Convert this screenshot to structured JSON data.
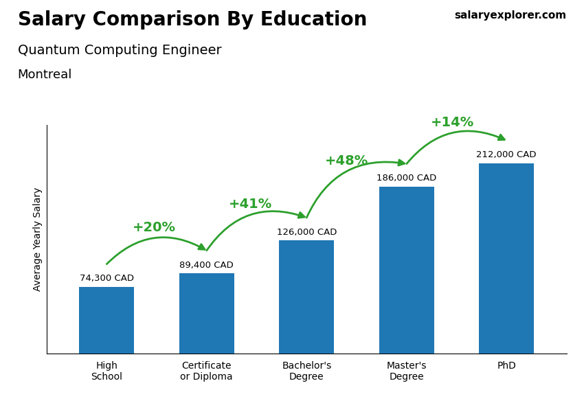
{
  "chart_data": {
    "type": "bar",
    "title": "Salary Comparison By Education",
    "subtitle": "Quantum Computing Engineer",
    "annotations": [
      {
        "text": "Montreal"
      },
      {
        "text": "salaryexplorer.com"
      },
      {
        "text": "+20%",
        "from": "High\nSchool",
        "to": "Certificate\nor Diploma"
      },
      {
        "text": "+41%",
        "from": "Certificate\nor Diploma",
        "to": "Bachelor's\nDegree"
      },
      {
        "text": "+48%",
        "from": "Bachelor's\nDegree",
        "to": "Master's\nDegree"
      },
      {
        "text": "+14%",
        "from": "Master's\nDegree",
        "to": "PhD"
      }
    ],
    "y_label": "Average Yearly Salary",
    "categories": [
      "High\nSchool",
      "Certificate\nor Diploma",
      "Bachelor's\nDegree",
      "Master's\nDegree",
      "PhD"
    ],
    "values": [
      74300,
      89400,
      126000,
      186000,
      212000
    ],
    "value_labels": [
      "74,300 CAD",
      "89,400 CAD",
      "126,000 CAD",
      "186,000 CAD",
      "212,000 CAD"
    ],
    "data_labels": true,
    "ylim": [
      0,
      255000
    ],
    "tick_labels": "x"
  }
}
